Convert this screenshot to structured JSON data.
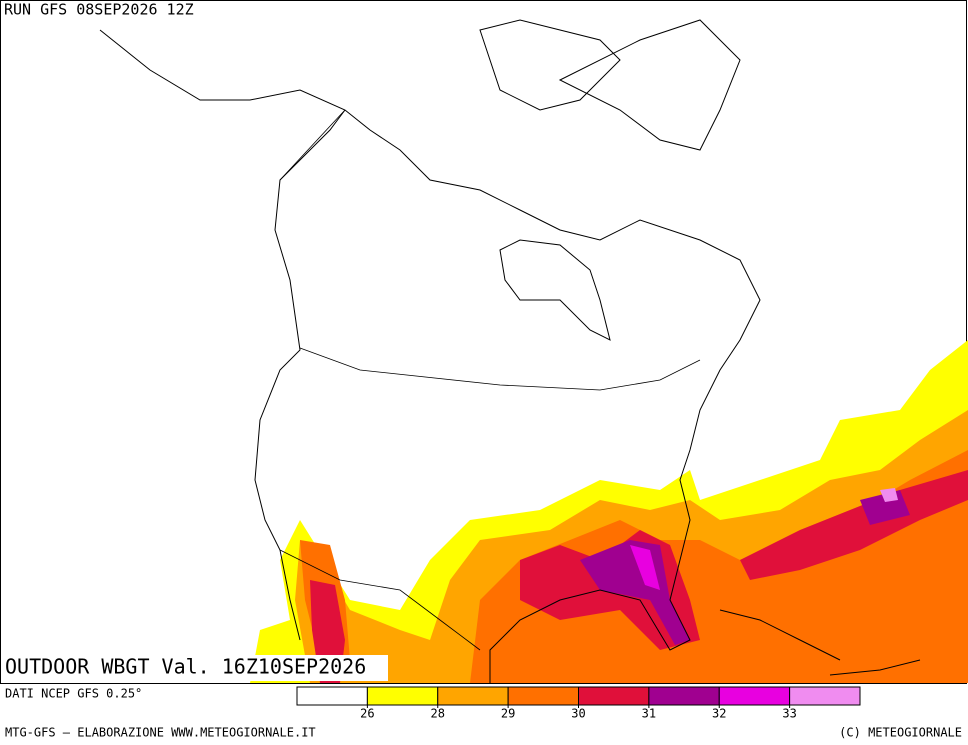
{
  "header": {
    "run": "RUN GFS 08SEP2026 12Z"
  },
  "map": {
    "title": "OUTDOOR WBGT Val. 16Z10SEP2026"
  },
  "legend": {
    "source": "DATI NCEP GFS 0.25°",
    "colors": [
      "#ffffff",
      "#ffff00",
      "#ffa500",
      "#ff7000",
      "#e0103a",
      "#a00090",
      "#e800e0",
      "#f08cf0"
    ],
    "ticks": [
      26,
      28,
      29,
      30,
      31,
      32,
      33
    ]
  },
  "footer": {
    "left": "MTG-GFS — ELABORAZIONE WWW.METEOGIORNALE.IT",
    "right": "(C) METEOGIORNALE"
  }
}
